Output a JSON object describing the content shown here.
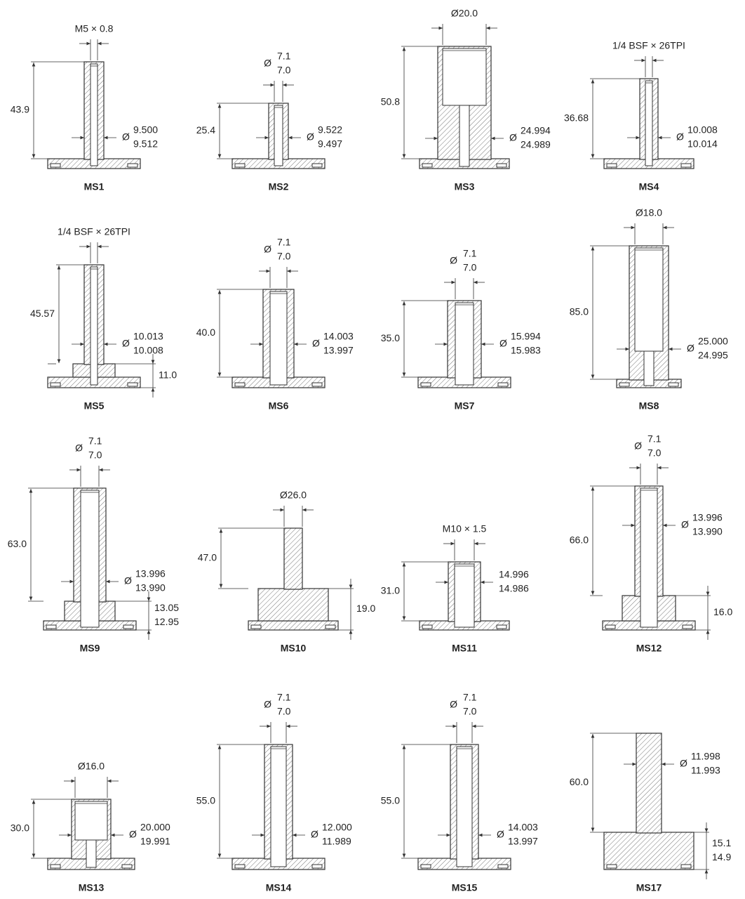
{
  "parts": [
    {
      "label": "MS1",
      "top": "M5 × 0.8",
      "height": "43.9",
      "dia": {
        "symbol": "Ø",
        "upper": "9.500",
        "lower": "9.512"
      }
    },
    {
      "label": "MS2",
      "top": {
        "symbol": "Ø",
        "upper": "7.1",
        "lower": "7.0"
      },
      "height": "25.4",
      "dia": {
        "symbol": "Ø",
        "upper": "9.522",
        "lower": "9.497"
      }
    },
    {
      "label": "MS3",
      "top": "Ø20.0",
      "height": "50.8",
      "dia": {
        "symbol": "Ø",
        "upper": "24.994",
        "lower": "24.989"
      }
    },
    {
      "label": "MS4",
      "top": "1/4 BSF × 26TPI",
      "height": "36.68",
      "dia": {
        "symbol": "Ø",
        "upper": "10.008",
        "lower": "10.014"
      }
    },
    {
      "label": "MS5",
      "top": "1/4 BSF × 26TPI",
      "height": "45.57",
      "dia": {
        "symbol": "Ø",
        "upper": "10.013",
        "lower": "10.008"
      },
      "side": "11.0"
    },
    {
      "label": "MS6",
      "top": {
        "symbol": "Ø",
        "upper": "7.1",
        "lower": "7.0"
      },
      "height": "40.0",
      "dia": {
        "symbol": "Ø",
        "upper": "14.003",
        "lower": "13.997"
      }
    },
    {
      "label": "MS7",
      "top": {
        "symbol": "Ø",
        "upper": "7.1",
        "lower": "7.0"
      },
      "height": "35.0",
      "dia": {
        "symbol": "Ø",
        "upper": "15.994",
        "lower": "15.983"
      }
    },
    {
      "label": "MS8",
      "top": "Ø18.0",
      "height": "85.0",
      "dia": {
        "symbol": "Ø",
        "upper": "25.000",
        "lower": "24.995"
      }
    },
    {
      "label": "MS9",
      "top": {
        "symbol": "Ø",
        "upper": "7.1",
        "lower": "7.0"
      },
      "height": "63.0",
      "dia": {
        "symbol": "Ø",
        "upper": "13.996",
        "lower": "13.990"
      },
      "side": {
        "upper": "13.05",
        "lower": "12.95"
      }
    },
    {
      "label": "MS10",
      "top": "Ø26.0",
      "height": "47.0",
      "side": "19.0"
    },
    {
      "label": "MS11",
      "top": "M10 × 1.5",
      "height": "31.0",
      "dia": {
        "upper": "14.996",
        "lower": "14.986"
      }
    },
    {
      "label": "MS12",
      "top": {
        "symbol": "Ø",
        "upper": "7.1",
        "lower": "7.0"
      },
      "height": "66.0",
      "dia": {
        "symbol": "Ø",
        "upper": "13.996",
        "lower": "13.990"
      },
      "side": "16.0"
    },
    {
      "label": "MS13",
      "top": "Ø16.0",
      "height": "30.0",
      "dia": {
        "symbol": "Ø",
        "upper": "20.000",
        "lower": "19.991"
      }
    },
    {
      "label": "MS14",
      "top": {
        "symbol": "Ø",
        "upper": "7.1",
        "lower": "7.0"
      },
      "height": "55.0",
      "dia": {
        "symbol": "Ø",
        "upper": "12.000",
        "lower": "11.989"
      }
    },
    {
      "label": "MS15",
      "top": {
        "symbol": "Ø",
        "upper": "7.1",
        "lower": "7.0"
      },
      "height": "55.0",
      "dia": {
        "symbol": "Ø",
        "upper": "14.003",
        "lower": "13.997"
      }
    },
    {
      "label": "MS17",
      "height": "60.0",
      "dia": {
        "symbol": "Ø",
        "upper": "11.998",
        "lower": "11.993"
      },
      "side": {
        "upper": "15.1",
        "lower": "14.9"
      }
    }
  ]
}
